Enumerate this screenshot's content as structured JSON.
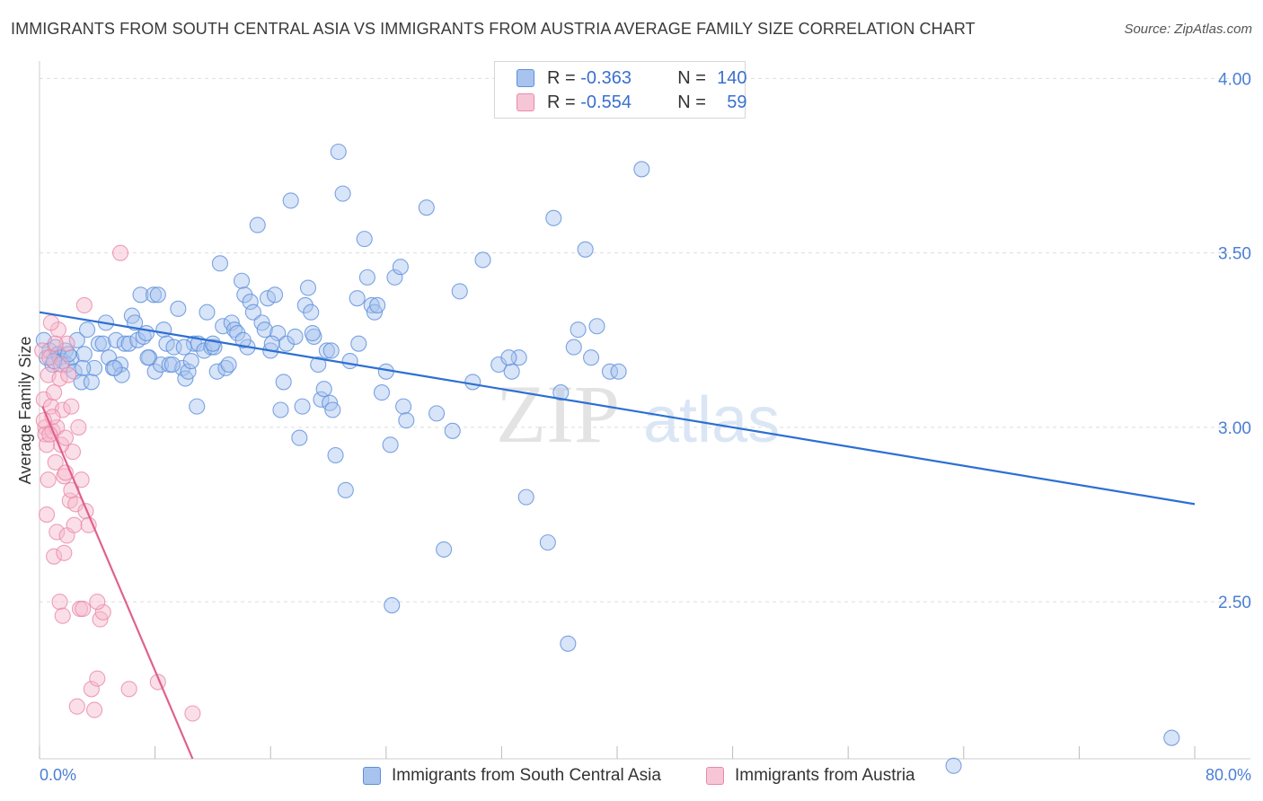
{
  "title": "IMMIGRANTS FROM SOUTH CENTRAL ASIA VS IMMIGRANTS FROM AUSTRIA AVERAGE FAMILY SIZE CORRELATION CHART",
  "source": "Source: ZipAtlas.com",
  "legend": {
    "rows": [
      {
        "r_label": "R =",
        "r_value": "-0.363",
        "n_label": "N =",
        "n_value": "140"
      },
      {
        "r_label": "R =",
        "r_value": "-0.554",
        "n_label": "N =",
        "n_value": "59"
      }
    ]
  },
  "watermark": {
    "zip": "ZIP",
    "atlas": "atlas"
  },
  "colors": {
    "blue_fill": "#a8c4ee",
    "blue_stroke": "#5b8fdc",
    "blue_line": "#2d6fd2",
    "pink_fill": "#f6b8cb",
    "pink_stroke": "#e98aa8",
    "pink_line": "#e0608e",
    "tick": "#4a7fd4",
    "grid": "#dddddd"
  },
  "chart_data": {
    "type": "scatter",
    "title": "IMMIGRANTS FROM SOUTH CENTRAL ASIA VS IMMIGRANTS FROM AUSTRIA AVERAGE FAMILY SIZE CORRELATION CHART",
    "xlabel": "",
    "ylabel": "Average Family Size",
    "xlim": [
      0,
      80
    ],
    "ylim": [
      2.05,
      4.05
    ],
    "x_tick_labels": [
      "0.0%",
      "80.0%"
    ],
    "y_ticks": [
      2.5,
      3.0,
      3.5,
      4.0
    ],
    "y_tick_labels": [
      "2.50",
      "3.00",
      "3.50",
      "4.00"
    ],
    "grid": true,
    "legend_position": "top-center",
    "series": [
      {
        "name": "Immigrants from South Central Asia",
        "color": "#5b8fdc",
        "trend": {
          "x": [
            0,
            80
          ],
          "y": [
            3.33,
            2.78
          ]
        },
        "points": [
          [
            0.3,
            3.25
          ],
          [
            0.5,
            3.2
          ],
          [
            0.7,
            3.22
          ],
          [
            0.9,
            3.18
          ],
          [
            1.1,
            3.23
          ],
          [
            1.3,
            3.21
          ],
          [
            1.4,
            3.2
          ],
          [
            1.6,
            3.19
          ],
          [
            1.8,
            3.22
          ],
          [
            1.9,
            3.18
          ],
          [
            2.2,
            3.2
          ],
          [
            2.4,
            3.16
          ],
          [
            2.6,
            3.25
          ],
          [
            2.9,
            3.13
          ],
          [
            3.1,
            3.21
          ],
          [
            3.3,
            3.28
          ],
          [
            3.6,
            3.13
          ],
          [
            3.8,
            3.17
          ],
          [
            4.1,
            3.24
          ],
          [
            4.4,
            3.24
          ],
          [
            4.6,
            3.3
          ],
          [
            4.8,
            3.2
          ],
          [
            5.1,
            3.17
          ],
          [
            5.3,
            3.25
          ],
          [
            5.6,
            3.18
          ],
          [
            5.7,
            3.15
          ],
          [
            5.9,
            3.24
          ],
          [
            6.2,
            3.24
          ],
          [
            6.4,
            3.32
          ],
          [
            6.6,
            3.3
          ],
          [
            6.8,
            3.25
          ],
          [
            7.0,
            3.38
          ],
          [
            7.2,
            3.26
          ],
          [
            7.4,
            3.27
          ],
          [
            7.6,
            3.2
          ],
          [
            7.9,
            3.38
          ],
          [
            8.0,
            3.16
          ],
          [
            8.2,
            3.38
          ],
          [
            8.4,
            3.18
          ],
          [
            8.6,
            3.28
          ],
          [
            8.8,
            3.24
          ],
          [
            9.0,
            3.18
          ],
          [
            9.3,
            3.23
          ],
          [
            9.6,
            3.34
          ],
          [
            9.9,
            3.17
          ],
          [
            10.1,
            3.14
          ],
          [
            10.3,
            3.16
          ],
          [
            10.5,
            3.19
          ],
          [
            10.7,
            3.24
          ],
          [
            10.9,
            3.06
          ],
          [
            11.0,
            3.24
          ],
          [
            11.4,
            3.22
          ],
          [
            11.6,
            3.33
          ],
          [
            11.9,
            3.23
          ],
          [
            12.1,
            3.23
          ],
          [
            12.3,
            3.16
          ],
          [
            12.5,
            3.47
          ],
          [
            12.7,
            3.29
          ],
          [
            12.9,
            3.17
          ],
          [
            13.1,
            3.18
          ],
          [
            13.3,
            3.3
          ],
          [
            13.5,
            3.28
          ],
          [
            13.7,
            3.27
          ],
          [
            14.0,
            3.42
          ],
          [
            14.2,
            3.38
          ],
          [
            14.4,
            3.23
          ],
          [
            14.6,
            3.36
          ],
          [
            14.8,
            3.33
          ],
          [
            15.1,
            3.58
          ],
          [
            15.4,
            3.3
          ],
          [
            15.6,
            3.28
          ],
          [
            15.8,
            3.37
          ],
          [
            16.0,
            3.22
          ],
          [
            16.3,
            3.38
          ],
          [
            16.5,
            3.27
          ],
          [
            16.7,
            3.05
          ],
          [
            16.9,
            3.13
          ],
          [
            17.1,
            3.24
          ],
          [
            17.4,
            3.65
          ],
          [
            17.7,
            3.26
          ],
          [
            18.0,
            2.97
          ],
          [
            18.2,
            3.06
          ],
          [
            18.4,
            3.35
          ],
          [
            18.6,
            3.4
          ],
          [
            18.8,
            3.33
          ],
          [
            19.0,
            3.26
          ],
          [
            19.3,
            3.18
          ],
          [
            19.5,
            3.08
          ],
          [
            19.7,
            3.11
          ],
          [
            19.9,
            3.22
          ],
          [
            20.1,
            3.07
          ],
          [
            20.3,
            3.05
          ],
          [
            20.5,
            2.92
          ],
          [
            20.7,
            3.79
          ],
          [
            21.0,
            3.67
          ],
          [
            21.2,
            2.82
          ],
          [
            21.5,
            3.19
          ],
          [
            22.0,
            3.37
          ],
          [
            22.5,
            3.54
          ],
          [
            22.7,
            3.43
          ],
          [
            23.0,
            3.35
          ],
          [
            23.2,
            3.33
          ],
          [
            23.4,
            3.35
          ],
          [
            23.7,
            3.1
          ],
          [
            24.0,
            3.16
          ],
          [
            24.3,
            2.95
          ],
          [
            24.6,
            3.43
          ],
          [
            25.0,
            3.46
          ],
          [
            25.2,
            3.06
          ],
          [
            25.4,
            3.02
          ],
          [
            26.8,
            3.63
          ],
          [
            27.5,
            3.04
          ],
          [
            28.0,
            2.65
          ],
          [
            28.6,
            2.99
          ],
          [
            29.1,
            3.39
          ],
          [
            30.0,
            3.13
          ],
          [
            30.7,
            3.48
          ],
          [
            31.8,
            3.18
          ],
          [
            32.7,
            3.16
          ],
          [
            33.2,
            3.2
          ],
          [
            33.7,
            2.8
          ],
          [
            35.2,
            2.67
          ],
          [
            35.6,
            3.6
          ],
          [
            36.1,
            3.1
          ],
          [
            36.6,
            2.38
          ],
          [
            37.0,
            3.23
          ],
          [
            37.3,
            3.28
          ],
          [
            37.8,
            3.51
          ],
          [
            38.2,
            3.2
          ],
          [
            38.6,
            3.29
          ],
          [
            39.5,
            3.16
          ],
          [
            40.1,
            3.16
          ],
          [
            41.7,
            3.74
          ],
          [
            24.4,
            2.49
          ],
          [
            32.5,
            3.2
          ],
          [
            20.2,
            3.22
          ],
          [
            9.2,
            3.18
          ],
          [
            5.2,
            3.17
          ],
          [
            1.0,
            3.19
          ],
          [
            2.0,
            3.21
          ],
          [
            12.0,
            3.24
          ],
          [
            16.1,
            3.24
          ],
          [
            3.0,
            3.17
          ],
          [
            7.5,
            3.2
          ],
          [
            10.0,
            3.23
          ],
          [
            14.1,
            3.25
          ],
          [
            18.9,
            3.27
          ],
          [
            22.1,
            3.24
          ],
          [
            63.3,
            2.03
          ],
          [
            78.4,
            2.11
          ]
        ]
      },
      {
        "name": "Immigrants from Austria",
        "color": "#e98aa8",
        "trend": {
          "x": [
            0.2,
            10.6
          ],
          "y": [
            3.06,
            2.05
          ]
        },
        "points": [
          [
            0.2,
            3.22
          ],
          [
            0.3,
            3.08
          ],
          [
            0.4,
            3.0
          ],
          [
            0.4,
            2.98
          ],
          [
            0.5,
            2.95
          ],
          [
            0.6,
            3.15
          ],
          [
            0.7,
            3.2
          ],
          [
            0.8,
            3.06
          ],
          [
            0.9,
            2.99
          ],
          [
            1.0,
            3.1
          ],
          [
            1.1,
            2.9
          ],
          [
            1.2,
            3.0
          ],
          [
            1.3,
            3.28
          ],
          [
            1.4,
            3.14
          ],
          [
            1.5,
            3.18
          ],
          [
            1.6,
            3.05
          ],
          [
            1.7,
            2.86
          ],
          [
            1.8,
            2.87
          ],
          [
            1.9,
            3.24
          ],
          [
            2.0,
            3.15
          ],
          [
            2.1,
            2.79
          ],
          [
            2.2,
            3.06
          ],
          [
            2.3,
            2.93
          ],
          [
            2.5,
            2.78
          ],
          [
            2.7,
            3.0
          ],
          [
            3.1,
            3.35
          ],
          [
            0.5,
            2.75
          ],
          [
            0.6,
            2.85
          ],
          [
            0.9,
            3.03
          ],
          [
            1.0,
            2.63
          ],
          [
            1.2,
            2.7
          ],
          [
            1.4,
            2.5
          ],
          [
            1.6,
            2.46
          ],
          [
            1.7,
            2.64
          ],
          [
            1.9,
            2.69
          ],
          [
            2.2,
            2.82
          ],
          [
            2.4,
            2.72
          ],
          [
            2.6,
            2.2
          ],
          [
            2.8,
            2.48
          ],
          [
            3.0,
            2.48
          ],
          [
            3.2,
            2.76
          ],
          [
            3.4,
            2.72
          ],
          [
            3.6,
            2.25
          ],
          [
            3.8,
            2.19
          ],
          [
            4.0,
            2.28
          ],
          [
            4.2,
            2.45
          ],
          [
            4.4,
            2.47
          ],
          [
            5.6,
            3.5
          ],
          [
            6.2,
            2.25
          ],
          [
            8.2,
            2.27
          ],
          [
            10.6,
            2.18
          ],
          [
            0.3,
            3.02
          ],
          [
            0.8,
            3.3
          ],
          [
            1.5,
            2.95
          ],
          [
            0.7,
            2.98
          ],
          [
            1.8,
            2.97
          ],
          [
            2.9,
            2.85
          ],
          [
            4.0,
            2.5
          ],
          [
            1.1,
            3.24
          ]
        ]
      }
    ]
  }
}
